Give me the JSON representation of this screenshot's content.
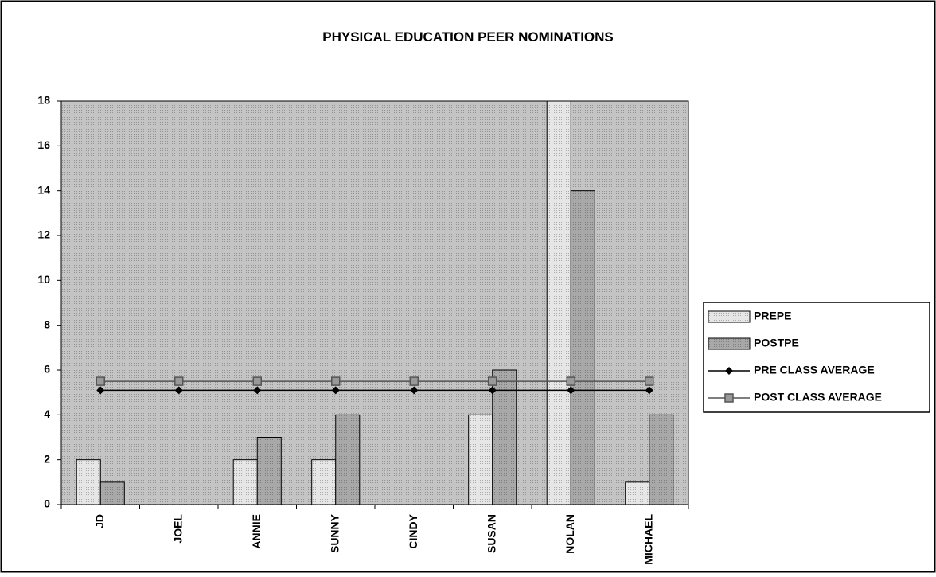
{
  "chart_data": {
    "type": "bar_line",
    "title": "PHYSICAL EDUCATION PEER NOMINATIONS",
    "categories": [
      "JD",
      "JOEL",
      "ANNIE",
      "SUNNY",
      "CINDY",
      "SUSAN",
      "NOLAN",
      "MICHAEL"
    ],
    "series": [
      {
        "name": "PREPE",
        "type": "bar",
        "color": "#e6e6e6",
        "values": [
          2,
          0,
          2,
          2,
          0,
          4,
          18,
          1
        ]
      },
      {
        "name": "POSTPE",
        "type": "bar",
        "color": "#a8a8a8",
        "values": [
          1,
          0,
          3,
          4,
          0,
          6,
          14,
          4
        ]
      },
      {
        "name": "PRE CLASS AVERAGE",
        "type": "line",
        "marker": "diamond",
        "color": "#000000",
        "values": [
          5.1,
          5.1,
          5.1,
          5.1,
          5.1,
          5.1,
          5.1,
          5.1
        ]
      },
      {
        "name": "POST CLASS AVERAGE",
        "type": "line",
        "marker": "square",
        "color": "#555555",
        "values": [
          5.5,
          5.5,
          5.5,
          5.5,
          5.5,
          5.5,
          5.5,
          5.5
        ]
      }
    ],
    "ylim": [
      0,
      18
    ],
    "yticks": [
      0,
      2,
      4,
      6,
      8,
      10,
      12,
      14,
      16,
      18
    ],
    "plot_background": "#c4c4c4",
    "legend": "right"
  }
}
